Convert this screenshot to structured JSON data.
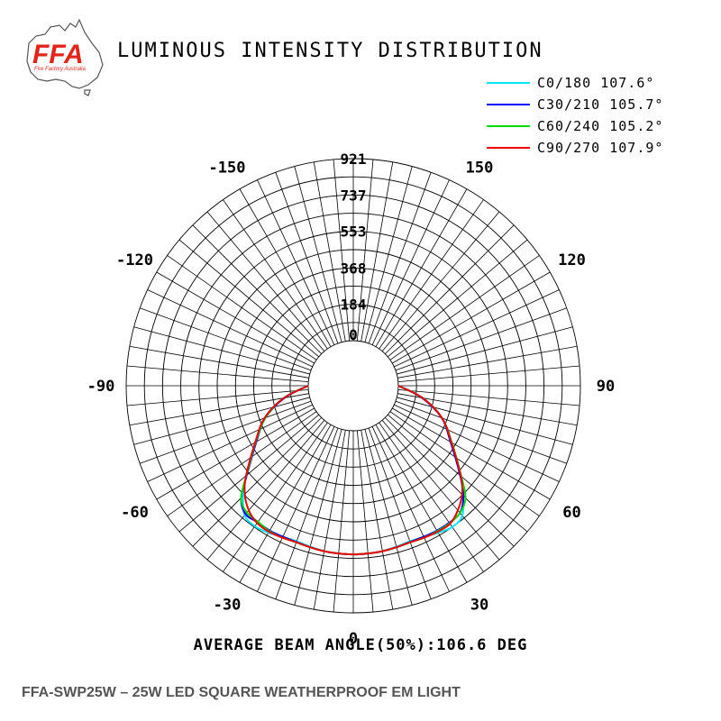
{
  "logo": {
    "brand": "FFA",
    "tagline": "Fire Factory Australia",
    "colors": {
      "brand_red": "#e3241b",
      "outline": "#555555"
    }
  },
  "chart_data": {
    "type": "polar",
    "title": "LUMINOUS INTENSITY DISTRIBUTION",
    "radial_ticks": [
      "0",
      "184",
      "368",
      "553",
      "737",
      "921"
    ],
    "radial_max": 921,
    "angle_labels": [
      "0",
      "30",
      "60",
      "90",
      "120",
      "150",
      "-150",
      "-120",
      "-90",
      "-60",
      "-30"
    ],
    "grid": true,
    "legend_position": "top-right",
    "series": [
      {
        "name": "C0/180 107.6°",
        "color": "#00e5ff",
        "angles": [
          -90,
          -80,
          -70,
          -60,
          -50,
          -45,
          -40,
          -35,
          -30,
          -25,
          -20,
          -15,
          -10,
          -5,
          0,
          5,
          10,
          15,
          20,
          25,
          30,
          35,
          40,
          45,
          50,
          60,
          70,
          80,
          90
        ],
        "values": [
          0,
          130,
          250,
          340,
          480,
          560,
          628,
          640,
          630,
          616,
          610,
          615,
          622,
          624,
          625,
          624,
          622,
          615,
          610,
          616,
          630,
          645,
          630,
          555,
          480,
          345,
          250,
          130,
          0
        ]
      },
      {
        "name": "C30/210 105.7°",
        "color": "#0000ff",
        "angles": [
          -90,
          -80,
          -70,
          -60,
          -50,
          -45,
          -40,
          -35,
          -30,
          -25,
          -20,
          -15,
          -10,
          -5,
          0,
          5,
          10,
          15,
          20,
          25,
          30,
          35,
          40,
          45,
          50,
          60,
          70,
          80,
          90
        ],
        "values": [
          0,
          125,
          245,
          338,
          475,
          575,
          620,
          615,
          618,
          615,
          613,
          618,
          622,
          624,
          625,
          624,
          622,
          618,
          613,
          615,
          618,
          618,
          612,
          560,
          478,
          340,
          248,
          125,
          0
        ]
      },
      {
        "name": "C60/240 105.2°",
        "color": "#00dd00",
        "angles": [
          -90,
          -80,
          -70,
          -60,
          -50,
          -45,
          -40,
          -35,
          -30,
          -25,
          -20,
          -15,
          -10,
          -5,
          0,
          5,
          10,
          15,
          20,
          25,
          30,
          35,
          40,
          45,
          50,
          60,
          70,
          80,
          90
        ],
        "values": [
          0,
          128,
          245,
          342,
          478,
          575,
          610,
          612,
          622,
          620,
          615,
          618,
          622,
          624,
          625,
          624,
          622,
          618,
          615,
          620,
          622,
          622,
          612,
          575,
          485,
          348,
          250,
          128,
          0
        ]
      },
      {
        "name": "C90/270 107.9°",
        "color": "#ee0000",
        "angles": [
          -90,
          -80,
          -70,
          -60,
          -50,
          -45,
          -40,
          -35,
          -30,
          -25,
          -20,
          -15,
          -10,
          -5,
          0,
          5,
          10,
          15,
          20,
          25,
          30,
          35,
          40,
          45,
          50,
          60,
          70,
          80,
          90
        ],
        "values": [
          0,
          128,
          250,
          345,
          480,
          548,
          595,
          620,
          625,
          620,
          615,
          618,
          622,
          624,
          625,
          624,
          622,
          618,
          615,
          620,
          625,
          625,
          595,
          550,
          482,
          345,
          250,
          128,
          0
        ]
      }
    ],
    "annotation": "AVERAGE BEAM ANGLE(50%):106.6 DEG"
  },
  "footer": {
    "product": "FFA-SWP25W – 25W LED SQUARE WEATHERPROOF EM LIGHT"
  }
}
